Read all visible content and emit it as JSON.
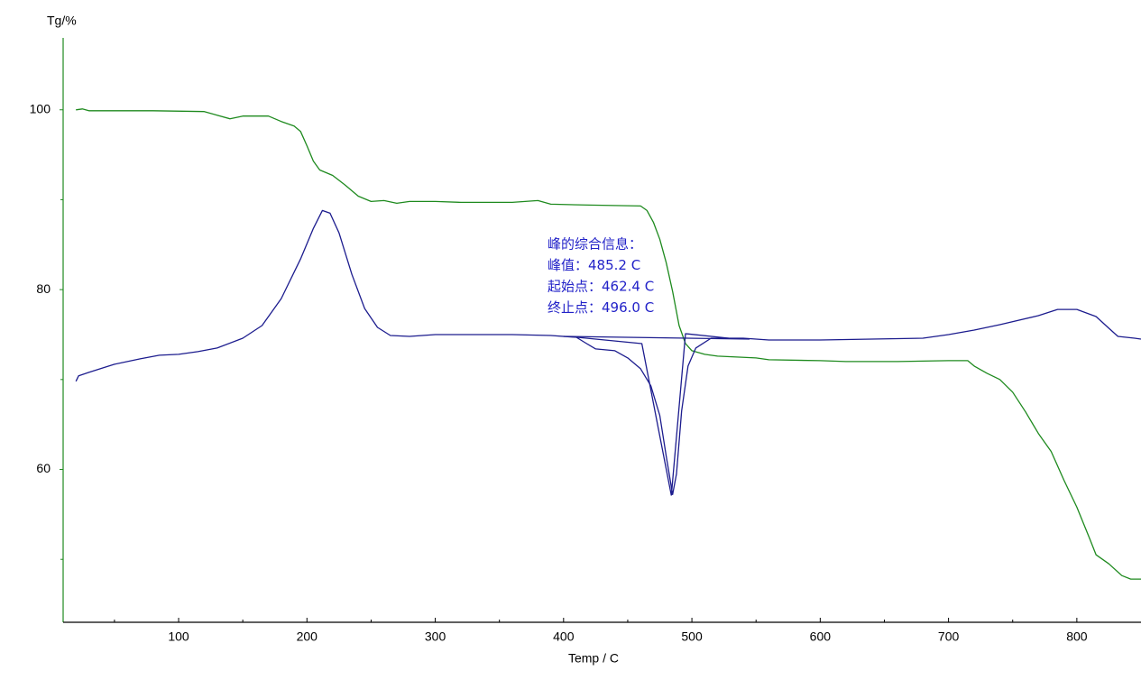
{
  "chart_data": {
    "type": "line",
    "y_label": "Tg/%",
    "x_label": "Temp / C",
    "xlim": [
      10,
      850
    ],
    "ylim": [
      43,
      108
    ],
    "xticks": [
      100,
      200,
      300,
      400,
      500,
      600,
      700,
      800
    ],
    "yticks": [
      60,
      80,
      100
    ],
    "xminor": [
      50,
      150,
      250,
      350,
      450,
      550,
      650,
      750
    ],
    "yminor": [
      50,
      70,
      90
    ],
    "y_axis_color": "#1e8a1e",
    "x_axis_color": "#000000",
    "annotations": [
      "峰的综合信息：",
      "峰值：485.2 C",
      "起始点：462.4 C",
      "终止点：496.0 C"
    ],
    "annotation_color": "#2222c8",
    "series": [
      {
        "color": "#1e8a1e",
        "x": [
          20,
          25,
          30,
          80,
          120,
          130,
          140,
          150,
          170,
          180,
          190,
          195,
          200,
          205,
          210,
          220,
          230,
          240,
          250,
          260,
          270,
          280,
          300,
          320,
          360,
          380,
          390,
          420,
          460,
          465,
          470,
          475,
          480,
          485,
          490,
          495,
          500,
          510,
          520,
          550,
          560,
          600,
          620,
          660,
          700,
          715,
          720,
          730,
          740,
          750,
          760,
          770,
          780,
          790,
          800,
          810,
          815,
          825,
          835,
          842,
          850
        ],
        "values": [
          100,
          100.1,
          99.9,
          99.9,
          99.8,
          99.4,
          99.0,
          99.3,
          99.3,
          98.7,
          98.2,
          97.6,
          96.0,
          94.3,
          93.3,
          92.7,
          91.6,
          90.4,
          89.8,
          89.9,
          89.6,
          89.8,
          89.8,
          89.7,
          89.7,
          89.9,
          89.5,
          89.4,
          89.3,
          88.8,
          87.5,
          85.6,
          83.0,
          79.8,
          76.0,
          74.0,
          73.2,
          72.8,
          72.6,
          72.4,
          72.2,
          72.1,
          72.0,
          72.0,
          72.1,
          72.1,
          71.5,
          70.7,
          70.0,
          68.6,
          66.4,
          64.0,
          62.0,
          58.8,
          55.8,
          52.3,
          50.5,
          49.5,
          48.2,
          47.8,
          47.8
        ]
      },
      {
        "color": "#1c1c8e",
        "x": [
          20,
          22,
          30,
          50,
          70,
          85,
          100,
          115,
          130,
          150,
          165,
          180,
          195,
          205,
          212,
          218,
          225,
          235,
          245,
          255,
          265,
          280,
          300,
          330,
          360,
          390,
          410,
          418,
          425,
          440,
          450,
          460,
          468,
          475,
          480,
          485,
          488,
          492,
          497,
          503,
          515,
          540,
          560,
          600,
          640,
          680,
          700,
          720,
          740,
          770,
          785,
          800,
          815,
          825,
          832,
          845,
          850
        ],
        "values": [
          69.8,
          70.4,
          70.8,
          71.7,
          72.3,
          72.7,
          72.8,
          73.1,
          73.5,
          74.6,
          76.0,
          79.0,
          83.4,
          86.8,
          88.8,
          88.5,
          86.3,
          81.7,
          77.9,
          75.8,
          74.9,
          74.8,
          75.0,
          75.0,
          75.0,
          74.9,
          74.7,
          74.0,
          73.4,
          73.2,
          72.4,
          71.2,
          69.3,
          66.0,
          61.5,
          57.2,
          59.5,
          66.5,
          71.5,
          73.5,
          74.6,
          74.6,
          74.4,
          74.4,
          74.5,
          74.6,
          75.0,
          75.5,
          76.1,
          77.1,
          77.8,
          77.8,
          77.0,
          75.7,
          74.8,
          74.6,
          74.5
        ]
      },
      {
        "color": "#1c1c8e",
        "x": [
          400,
          545
        ],
        "values": [
          74.8,
          74.5
        ]
      },
      {
        "color": "#1c1c8e",
        "x": [
          410.6,
          461,
          484
        ],
        "values": [
          74.7,
          74.0,
          57.1
        ]
      },
      {
        "color": "#1c1c8e",
        "x": [
          484,
          495,
          528.6
        ],
        "values": [
          57.1,
          75.1,
          74.6
        ]
      }
    ]
  }
}
